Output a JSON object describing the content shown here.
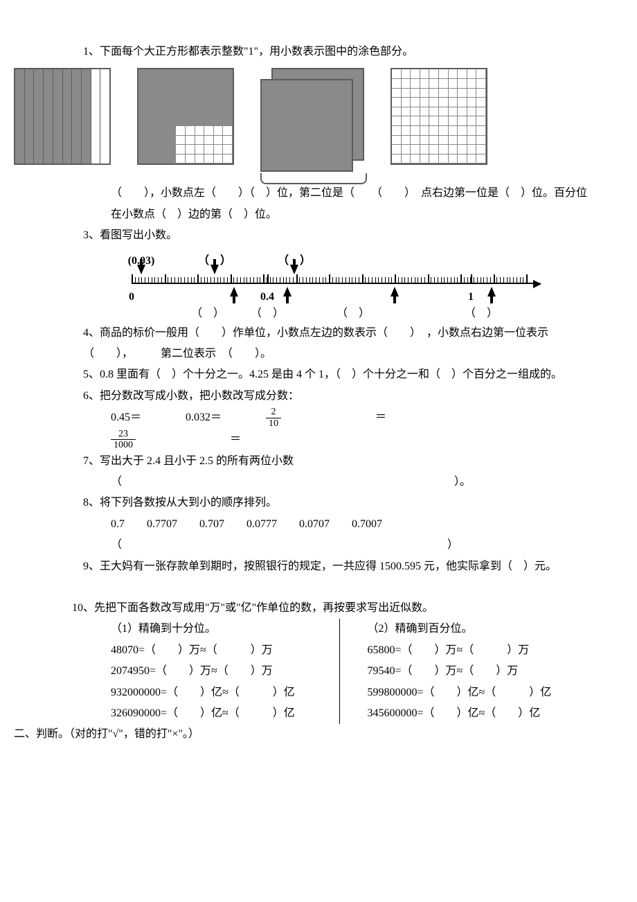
{
  "q1": {
    "prompt": "1、下面每个大正方形都表示整数\"1\"，用小数表示图中的涂色部分。",
    "fig1_shaded_cols": 8,
    "fig2_shaded_pattern": "left4cols_plus_topstrip",
    "fig_fill_color": "#8a8a8a",
    "fig_border_color": "#5c5c5c"
  },
  "q2": {
    "text": "（　　），小数点左（　　）（　）位，第二位是（　　（　　）　点右边第一位是（　）位。百分位在小数点（　）边的第（　）位。"
  },
  "q3": {
    "prompt": "3、看图写出小数。",
    "number_line": {
      "range": [
        0,
        1.2
      ],
      "major_ticks": [
        0,
        0.4,
        1
      ],
      "known_label": "(0.03)",
      "top_blanks_at": [
        0.24,
        0.48
      ],
      "down_arrows_at": [
        0.03,
        0.24,
        0.48
      ],
      "up_arrows_at": [
        0.3,
        0.46,
        0.78,
        1.06
      ],
      "bottom_blanks_at": [
        0.22,
        0.4,
        0.65,
        1.03
      ]
    }
  },
  "q4": {
    "text": "4、商品的标价一般用（　　）作单位，小数点左边的数表示（　　）　，小数点右边第一位表示（　　），　　　第二位表示　（　　）。"
  },
  "q5": {
    "text": "5、0.8 里面有（　）个十分之一。4.25 是由 4 个 1，（　）个十分之一和（　）个百分之一组成的。"
  },
  "q6": {
    "prompt": "6、把分数改写成小数，把小数改写成分数：",
    "items": [
      "0.45＝",
      "0.032＝"
    ],
    "fractions": [
      {
        "num": "2",
        "den": "10"
      },
      {
        "num": "23",
        "den": "1000"
      }
    ]
  },
  "q7": {
    "text": "7、写出大于 2.4 且小于 2.5 的所有两位小数",
    "blank_close": "）。"
  },
  "q8": {
    "prompt": "8、将下列各数按从大到小的顺序排列。",
    "numbers": [
      "0.7",
      "0.7707",
      "0.707",
      "0.0777",
      "0.0707",
      "0.7007"
    ]
  },
  "q9": {
    "text": "9、王大妈有一张存款单到期时，按照银行的规定，一共应得 1500.595 元，他实际拿到（　）元。"
  },
  "q10": {
    "prompt": "10、先把下面各数改写成用\"万\"或\"亿\"作单位的数，再按要求写出近似数。",
    "left": {
      "heading": "（1）精确到十分位。",
      "rows": [
        "48070=（　　）万≈（　　　）万",
        "2074950=（　　）万≈（　　）万",
        "932000000=（　　）亿≈（　　　）亿",
        "326090000=（　　）亿≈（　　　）亿"
      ]
    },
    "right": {
      "heading": "（2）精确到百分位。",
      "rows": [
        "65800=（　　）万≈（　　　）万",
        "79540=（　　）万≈（　　）万",
        "599800000=（　　）亿≈（　　　）亿",
        "345600000=（　　）亿≈（　　）亿"
      ]
    }
  },
  "sect2": {
    "text": "二、判断。（对的打\"√\"，错的打\"×\"。）"
  }
}
